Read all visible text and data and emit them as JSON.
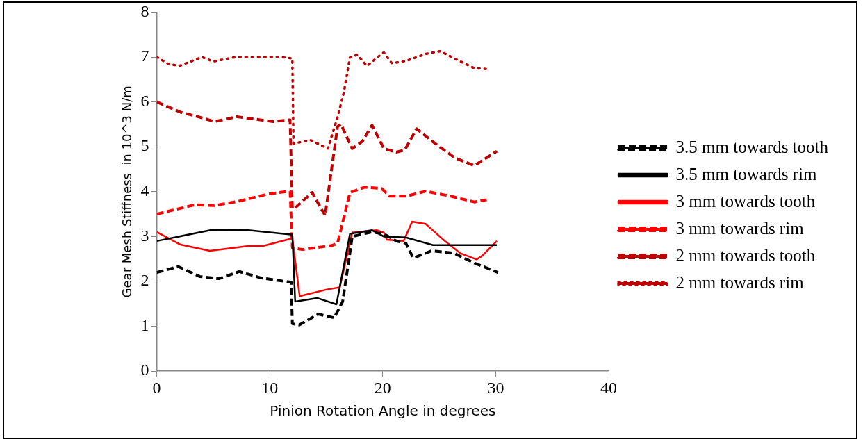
{
  "chart_data": {
    "type": "line",
    "xlabel": "Pinion Rotation Angle in degrees",
    "ylabel": "Gear Mesh Stiffness  in 10^3 N/m",
    "xlim": [
      0,
      40
    ],
    "xticks": [
      0,
      10,
      20,
      30,
      40
    ],
    "ylim": [
      0,
      8
    ],
    "yticks": [
      0,
      1,
      2,
      3,
      4,
      5,
      6,
      7,
      8
    ],
    "grid": false,
    "legend": "right",
    "marker": "none",
    "series": [
      {
        "name": "3.5 mm towards tooth",
        "color": "#000000",
        "line_style": "dashed",
        "x": [
          0,
          1.9,
          3.8,
          5.5,
          7.3,
          9.2,
          11.9,
          12.0,
          12.6,
          14.3,
          15.7,
          16.45,
          17.0,
          17.3,
          19.0,
          20.1,
          21.2,
          22.05,
          22.7,
          24.3,
          26.3,
          28.1,
          30.2
        ],
        "values": [
          2.2,
          2.33,
          2.11,
          2.06,
          2.22,
          2.08,
          1.98,
          1.06,
          1.03,
          1.27,
          1.19,
          1.55,
          2.47,
          3.0,
          3.1,
          3.06,
          2.9,
          2.85,
          2.52,
          2.68,
          2.63,
          2.41,
          2.2
        ]
      },
      {
        "name": "3.5 mm towards rim",
        "color": "#000000",
        "line_style": "solid",
        "x": [
          0,
          4.9,
          8.1,
          12.0,
          12.25,
          14.2,
          15.9,
          17.1,
          19.05,
          20.1,
          22.05,
          24.45,
          30.1
        ],
        "values": [
          2.9,
          3.15,
          3.14,
          3.04,
          1.55,
          1.63,
          1.49,
          3.06,
          3.14,
          3.0,
          2.98,
          2.81,
          2.81
        ]
      },
      {
        "name": "3 mm towards tooth",
        "color": "#ff0000",
        "line_style": "solid",
        "x": [
          0,
          2.1,
          4.7,
          8.1,
          9.4,
          12.0,
          12.65,
          15.05,
          16.2,
          17.3,
          19.5,
          20.1,
          20.35,
          21.85,
          22.6,
          23.8,
          25.5,
          26.85,
          28.3,
          28.8,
          30.1
        ],
        "values": [
          3.1,
          2.82,
          2.68,
          2.79,
          2.79,
          2.96,
          1.67,
          1.82,
          1.87,
          3.09,
          3.14,
          3.09,
          2.93,
          2.9,
          3.33,
          3.28,
          2.9,
          2.63,
          2.49,
          2.57,
          2.9
        ]
      },
      {
        "name": "3 mm towards rim",
        "color": "#ff0000",
        "line_style": "dashed",
        "x": [
          0,
          3.4,
          5.1,
          7.3,
          9.9,
          11.8,
          12.0,
          12.9,
          15.5,
          16.0,
          17.1,
          18.4,
          19.9,
          20.6,
          22.1,
          23.8,
          26.0,
          28.1,
          29.2
        ],
        "values": [
          3.5,
          3.71,
          3.69,
          3.79,
          3.95,
          4.01,
          2.75,
          2.71,
          2.8,
          2.85,
          3.98,
          4.1,
          4.07,
          3.9,
          3.9,
          4.01,
          3.9,
          3.77,
          3.82
        ]
      },
      {
        "name": "2 mm towards tooth",
        "color": "#c00000",
        "line_style": "dashed",
        "x": [
          0,
          2.1,
          3.8,
          5.1,
          7.1,
          10.3,
          11.8,
          12.0,
          12.2,
          13.75,
          14.6,
          14.9,
          16.0,
          16.3,
          17.3,
          18.2,
          19.05,
          20.1,
          21.2,
          21.95,
          23.0,
          24.65,
          26.4,
          28.1,
          30.1
        ],
        "values": [
          6.0,
          5.77,
          5.66,
          5.56,
          5.67,
          5.56,
          5.6,
          3.63,
          3.63,
          3.98,
          3.6,
          3.47,
          5.45,
          5.5,
          4.96,
          5.12,
          5.48,
          4.96,
          4.88,
          4.93,
          5.4,
          5.07,
          4.75,
          4.58,
          4.9
        ]
      },
      {
        "name": "2 mm towards rim",
        "color": "#c00000",
        "line_style": "dotted",
        "x": [
          0,
          1,
          2,
          3,
          4,
          5,
          6,
          7,
          9,
          11,
          12.0,
          12.1,
          13.6,
          15.15,
          16.0,
          16.55,
          17.1,
          17.75,
          18.6,
          19.9,
          20.1,
          20.8,
          22.05,
          23.8,
          25.1,
          26.4,
          28.1,
          29.4
        ],
        "values": [
          7.0,
          6.85,
          6.8,
          6.9,
          7.0,
          6.9,
          6.95,
          7.0,
          7.0,
          7.0,
          6.97,
          5.07,
          5.15,
          4.96,
          5.66,
          6.2,
          6.99,
          7.05,
          6.8,
          7.07,
          7.1,
          6.86,
          6.91,
          7.07,
          7.13,
          6.96,
          6.75,
          6.73
        ]
      }
    ]
  }
}
